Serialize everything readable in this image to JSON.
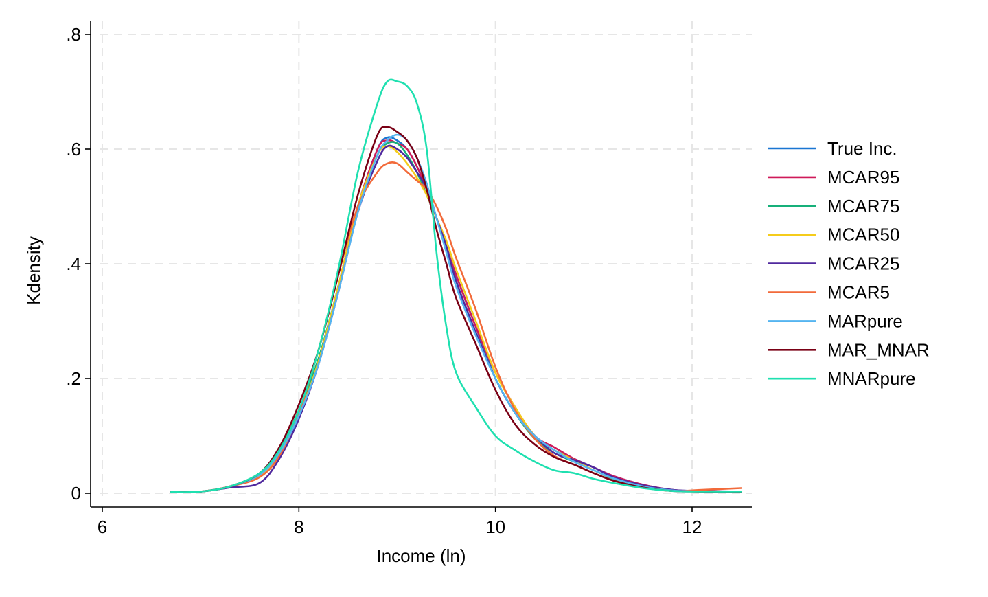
{
  "chart_data": {
    "type": "line",
    "xlabel": "Income (ln)",
    "ylabel": "Kdensity",
    "xlim": [
      6,
      12.5
    ],
    "ylim": [
      0,
      0.8
    ],
    "x_ticks": [
      {
        "value": 6,
        "label": "6"
      },
      {
        "value": 8,
        "label": "8"
      },
      {
        "value": 10,
        "label": "10"
      },
      {
        "value": 12,
        "label": "12"
      }
    ],
    "y_ticks": [
      {
        "value": 0,
        "label": "0"
      },
      {
        "value": 0.2,
        "label": ".2"
      },
      {
        "value": 0.4,
        "label": ".4"
      },
      {
        "value": 0.6,
        "label": ".6"
      },
      {
        "value": 0.8,
        "label": ".8"
      }
    ],
    "grid": true,
    "legend_position": "right",
    "x": [
      6.7,
      7.0,
      7.3,
      7.6,
      7.8,
      8.0,
      8.2,
      8.4,
      8.6,
      8.8,
      8.9,
      9.0,
      9.1,
      9.2,
      9.3,
      9.4,
      9.5,
      9.6,
      9.8,
      10.0,
      10.2,
      10.4,
      10.6,
      10.8,
      11.0,
      11.2,
      11.5,
      11.8,
      12.1,
      12.5
    ],
    "series": [
      {
        "name": "True Inc.",
        "color": "#1a76d2",
        "values": [
          0.002,
          0.003,
          0.012,
          0.03,
          0.07,
          0.14,
          0.23,
          0.36,
          0.5,
          0.6,
          0.62,
          0.615,
          0.6,
          0.57,
          0.53,
          0.48,
          0.43,
          0.38,
          0.29,
          0.2,
          0.14,
          0.1,
          0.075,
          0.06,
          0.045,
          0.03,
          0.015,
          0.006,
          0.003,
          0.002
        ]
      },
      {
        "name": "MCAR95",
        "color": "#cf1a5a",
        "values": [
          0.002,
          0.003,
          0.012,
          0.03,
          0.07,
          0.14,
          0.23,
          0.36,
          0.5,
          0.6,
          0.615,
          0.61,
          0.6,
          0.57,
          0.53,
          0.48,
          0.43,
          0.38,
          0.29,
          0.21,
          0.15,
          0.1,
          0.08,
          0.06,
          0.045,
          0.03,
          0.015,
          0.006,
          0.003,
          0.003
        ]
      },
      {
        "name": "MCAR75",
        "color": "#17b07a",
        "values": [
          0.002,
          0.003,
          0.012,
          0.035,
          0.075,
          0.145,
          0.235,
          0.36,
          0.5,
          0.59,
          0.61,
          0.61,
          0.59,
          0.56,
          0.52,
          0.48,
          0.43,
          0.37,
          0.28,
          0.2,
          0.14,
          0.095,
          0.07,
          0.055,
          0.04,
          0.025,
          0.012,
          0.005,
          0.003,
          0.002
        ]
      },
      {
        "name": "MCAR50",
        "color": "#f5cc1b",
        "values": [
          0.002,
          0.003,
          0.012,
          0.03,
          0.065,
          0.135,
          0.23,
          0.36,
          0.5,
          0.59,
          0.605,
          0.595,
          0.575,
          0.55,
          0.52,
          0.48,
          0.44,
          0.39,
          0.3,
          0.21,
          0.15,
          0.1,
          0.075,
          0.058,
          0.04,
          0.026,
          0.012,
          0.005,
          0.003,
          0.003
        ]
      },
      {
        "name": "MCAR25",
        "color": "#50299e",
        "values": [
          0.002,
          0.003,
          0.01,
          0.018,
          0.06,
          0.13,
          0.225,
          0.35,
          0.49,
          0.58,
          0.605,
          0.6,
          0.585,
          0.56,
          0.53,
          0.48,
          0.43,
          0.37,
          0.28,
          0.2,
          0.14,
          0.1,
          0.07,
          0.058,
          0.045,
          0.028,
          0.014,
          0.006,
          0.004,
          0.003
        ]
      },
      {
        "name": "MCAR5",
        "color": "#f26a3a",
        "values": [
          0.002,
          0.003,
          0.012,
          0.028,
          0.065,
          0.14,
          0.25,
          0.38,
          0.5,
          0.56,
          0.575,
          0.575,
          0.56,
          0.545,
          0.53,
          0.5,
          0.46,
          0.41,
          0.32,
          0.22,
          0.145,
          0.095,
          0.065,
          0.05,
          0.035,
          0.022,
          0.01,
          0.004,
          0.006,
          0.009
        ]
      },
      {
        "name": "MARpure",
        "color": "#55b4f0",
        "values": [
          0.002,
          0.003,
          0.012,
          0.032,
          0.07,
          0.135,
          0.225,
          0.35,
          0.49,
          0.59,
          0.615,
          0.625,
          0.615,
          0.585,
          0.54,
          0.48,
          0.42,
          0.36,
          0.275,
          0.2,
          0.14,
          0.1,
          0.075,
          0.055,
          0.04,
          0.026,
          0.012,
          0.005,
          0.003,
          0.002
        ]
      },
      {
        "name": "MAR_MNAR",
        "color": "#7a0015",
        "values": [
          0.002,
          0.003,
          0.012,
          0.035,
          0.08,
          0.155,
          0.25,
          0.38,
          0.52,
          0.625,
          0.638,
          0.63,
          0.615,
          0.585,
          0.53,
          0.46,
          0.4,
          0.34,
          0.26,
          0.18,
          0.12,
          0.085,
          0.063,
          0.05,
          0.035,
          0.022,
          0.01,
          0.004,
          0.003,
          0.002
        ]
      },
      {
        "name": "MNARpure",
        "color": "#1fe0b0",
        "values": [
          0.002,
          0.003,
          0.012,
          0.035,
          0.075,
          0.145,
          0.25,
          0.39,
          0.56,
          0.68,
          0.718,
          0.718,
          0.71,
          0.68,
          0.6,
          0.42,
          0.29,
          0.21,
          0.15,
          0.1,
          0.075,
          0.055,
          0.04,
          0.035,
          0.025,
          0.018,
          0.009,
          0.004,
          0.003,
          0.003
        ]
      }
    ]
  }
}
